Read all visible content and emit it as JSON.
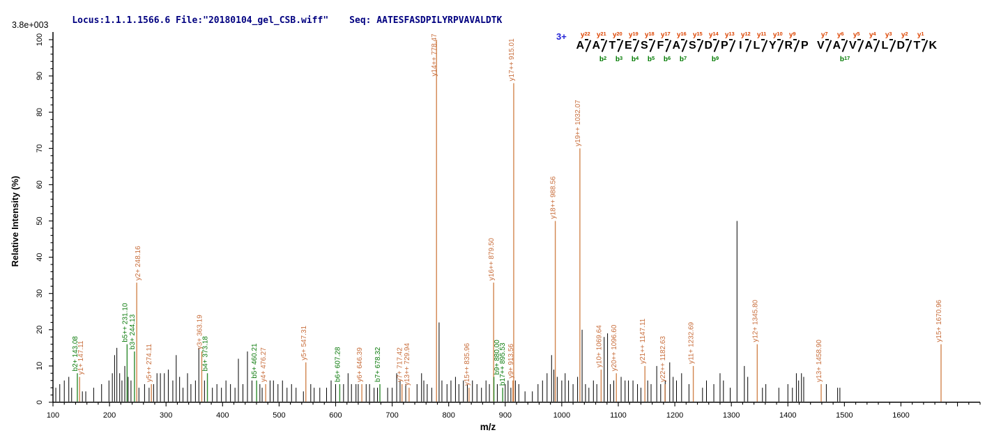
{
  "header": {
    "locus_file": "Locus:1.1.1.1566.6 File:\"20180104_gel_CSB.wiff\"",
    "seq_label": "Seq: AATESFASDPILYRPVAVALDTK"
  },
  "chart_data": {
    "type": "bar",
    "subtype": "ms2-fragmentation-spectrum",
    "title": "",
    "xlabel": "m/z",
    "ylabel": "Relative  Intensity (%)",
    "y_scale_note": "3.8e+003",
    "xlim": [
      100,
      1740
    ],
    "ylim": [
      0,
      100
    ],
    "grid": false,
    "x_tick_labels": [
      100,
      200,
      300,
      400,
      500,
      600,
      700,
      800,
      900,
      1000,
      1100,
      1200,
      1300,
      1400,
      1500,
      1600
    ],
    "x_minor_step": 20,
    "y_tick_labels": [
      0,
      10,
      20,
      30,
      40,
      50,
      60,
      70,
      80,
      90,
      100
    ],
    "y_minor_step": 2,
    "peptide": {
      "charge_label": "3+",
      "residues": "AATESFASDPILYRPVAVALDTK",
      "boundaries": [
        {
          "y": 22
        },
        {
          "y": 21,
          "b": 2
        },
        {
          "y": 20,
          "b": 3
        },
        {
          "y": 19,
          "b": 4
        },
        {
          "y": 18,
          "b": 5
        },
        {
          "y": 17,
          "b": 6
        },
        {
          "y": 16,
          "b": 7
        },
        {
          "y": 15
        },
        {
          "y": 14,
          "b": 9
        },
        {
          "y": 13
        },
        {
          "y": 12
        },
        {
          "y": 11
        },
        {
          "y": 10
        },
        {
          "y": 9
        },
        {},
        {
          "y": 7
        },
        {
          "y": 6,
          "b": 17
        },
        {
          "y": 5
        },
        {
          "y": 4
        },
        {
          "y": 3
        },
        {
          "y": 2
        },
        {
          "y": 1
        }
      ]
    },
    "labeled_peaks": [
      {
        "ion": "b2+",
        "mz": "143.08",
        "intensity": 8,
        "series": "b"
      },
      {
        "ion": "y1+",
        "mz": "147.11",
        "intensity": 7,
        "series": "y"
      },
      {
        "ion": "b5++",
        "mz": "231.10",
        "intensity": 16,
        "series": "b"
      },
      {
        "ion": "b3+",
        "mz": "244.13",
        "intensity": 14,
        "series": "b"
      },
      {
        "ion": "y2+",
        "mz": "248.16",
        "intensity": 33,
        "series": "y"
      },
      {
        "ion": "y5++",
        "mz": "274.11",
        "intensity": 5,
        "series": "y"
      },
      {
        "ion": "y3+",
        "mz": "363.19",
        "intensity": 14,
        "series": "y"
      },
      {
        "ion": "b4+",
        "mz": "373.18",
        "intensity": 8,
        "series": "b"
      },
      {
        "ion": "b5+",
        "mz": "460.21",
        "intensity": 6,
        "series": "b"
      },
      {
        "ion": "y4+",
        "mz": "476.27",
        "intensity": 5,
        "series": "y"
      },
      {
        "ion": "y5+",
        "mz": "547.31",
        "intensity": 11,
        "series": "y"
      },
      {
        "ion": "b6+",
        "mz": "607.28",
        "intensity": 5,
        "series": "b"
      },
      {
        "ion": "y6+",
        "mz": "646.39",
        "intensity": 5,
        "series": "y"
      },
      {
        "ion": "b7+",
        "mz": "678.32",
        "intensity": 5,
        "series": "b"
      },
      {
        "ion": "y7+",
        "mz": "717.42",
        "intensity": 5,
        "series": "y"
      },
      {
        "ion": "y13++",
        "mz": "729.94",
        "intensity": 4,
        "series": "y"
      },
      {
        "ion": "y14++",
        "mz": "778.47",
        "intensity": 100,
        "series": "y"
      },
      {
        "ion": "y15++",
        "mz": "835.96",
        "intensity": 4,
        "series": "y"
      },
      {
        "ion": "y16++",
        "mz": "879.50",
        "intensity": 33,
        "series": "y"
      },
      {
        "ion": "b9+",
        "mz": "880.00",
        "intensity": 7,
        "series": "b"
      },
      {
        "ion": "b17++",
        "mz": "895.53",
        "intensity": 4,
        "series": "b"
      },
      {
        "ion": "y9+",
        "mz": "913.56",
        "intensity": 6,
        "series": "y"
      },
      {
        "ion": "y17++",
        "mz": "915.01",
        "intensity": 88,
        "series": "y"
      },
      {
        "ion": "y18++",
        "mz": "988.56",
        "intensity": 50,
        "series": "y"
      },
      {
        "ion": "y19++",
        "mz": "1032.07",
        "intensity": 70,
        "series": "y"
      },
      {
        "ion": "y10+",
        "mz": "1069.64",
        "intensity": 9,
        "series": "y"
      },
      {
        "ion": "y20++",
        "mz": "1096.60",
        "intensity": 8,
        "series": "y"
      },
      {
        "ion": "y21++",
        "mz": "1147.11",
        "intensity": 10,
        "series": "y"
      },
      {
        "ion": "y22++",
        "mz": "1182.63",
        "intensity": 5,
        "series": "y"
      },
      {
        "ion": "y11+",
        "mz": "1232.69",
        "intensity": 10,
        "series": "y"
      },
      {
        "ion": "y12+",
        "mz": "1345.80",
        "intensity": 16,
        "series": "y"
      },
      {
        "ion": "y13+",
        "mz": "1458.90",
        "intensity": 5,
        "series": "y"
      },
      {
        "ion": "y15+",
        "mz": "1670.96",
        "intensity": 16,
        "series": "y"
      }
    ],
    "unlabeled_peaks": [
      [
        105,
        4
      ],
      [
        112,
        5
      ],
      [
        120,
        6
      ],
      [
        128,
        7
      ],
      [
        133,
        4
      ],
      [
        152,
        3
      ],
      [
        158,
        3
      ],
      [
        172,
        4
      ],
      [
        186,
        5
      ],
      [
        199,
        6
      ],
      [
        205,
        8
      ],
      [
        209,
        13
      ],
      [
        213,
        15
      ],
      [
        218,
        8
      ],
      [
        222,
        6
      ],
      [
        227,
        10
      ],
      [
        233,
        7
      ],
      [
        238,
        6
      ],
      [
        252,
        4
      ],
      [
        262,
        5
      ],
      [
        270,
        4
      ],
      [
        278,
        5
      ],
      [
        284,
        8
      ],
      [
        290,
        8
      ],
      [
        297,
        8
      ],
      [
        304,
        9
      ],
      [
        312,
        6
      ],
      [
        318,
        13
      ],
      [
        324,
        7
      ],
      [
        330,
        4
      ],
      [
        338,
        8
      ],
      [
        344,
        5
      ],
      [
        352,
        6
      ],
      [
        358,
        15
      ],
      [
        368,
        6
      ],
      [
        382,
        4
      ],
      [
        390,
        5
      ],
      [
        398,
        4
      ],
      [
        406,
        6
      ],
      [
        414,
        5
      ],
      [
        422,
        4
      ],
      [
        428,
        12
      ],
      [
        436,
        5
      ],
      [
        444,
        14
      ],
      [
        452,
        6
      ],
      [
        466,
        5
      ],
      [
        470,
        4
      ],
      [
        484,
        6
      ],
      [
        490,
        6
      ],
      [
        498,
        5
      ],
      [
        506,
        6
      ],
      [
        514,
        4
      ],
      [
        522,
        5
      ],
      [
        530,
        4
      ],
      [
        543,
        3
      ],
      [
        556,
        5
      ],
      [
        562,
        4
      ],
      [
        572,
        4
      ],
      [
        584,
        4
      ],
      [
        592,
        6
      ],
      [
        600,
        5
      ],
      [
        614,
        5
      ],
      [
        622,
        8
      ],
      [
        628,
        5
      ],
      [
        636,
        5
      ],
      [
        640,
        5
      ],
      [
        654,
        5
      ],
      [
        660,
        5
      ],
      [
        668,
        4
      ],
      [
        674,
        4
      ],
      [
        692,
        4
      ],
      [
        700,
        4
      ],
      [
        708,
        8
      ],
      [
        714,
        6
      ],
      [
        724,
        5
      ],
      [
        744,
        5
      ],
      [
        752,
        8
      ],
      [
        756,
        6
      ],
      [
        762,
        5
      ],
      [
        770,
        4
      ],
      [
        783,
        22
      ],
      [
        788,
        6
      ],
      [
        797,
        5
      ],
      [
        804,
        6
      ],
      [
        812,
        7
      ],
      [
        818,
        5
      ],
      [
        826,
        6
      ],
      [
        833,
        5
      ],
      [
        842,
        6
      ],
      [
        850,
        5
      ],
      [
        858,
        4
      ],
      [
        866,
        6
      ],
      [
        872,
        5
      ],
      [
        886,
        5
      ],
      [
        900,
        5
      ],
      [
        905,
        6
      ],
      [
        910,
        4
      ],
      [
        918,
        6
      ],
      [
        924,
        5
      ],
      [
        935,
        3
      ],
      [
        948,
        3
      ],
      [
        958,
        5
      ],
      [
        966,
        6
      ],
      [
        974,
        8
      ],
      [
        982,
        13
      ],
      [
        986,
        9
      ],
      [
        992,
        7
      ],
      [
        1000,
        6
      ],
      [
        1006,
        8
      ],
      [
        1012,
        6
      ],
      [
        1020,
        5
      ],
      [
        1028,
        7
      ],
      [
        1036,
        20
      ],
      [
        1042,
        5
      ],
      [
        1048,
        4
      ],
      [
        1056,
        6
      ],
      [
        1062,
        5
      ],
      [
        1075,
        18
      ],
      [
        1081,
        19
      ],
      [
        1086,
        5
      ],
      [
        1092,
        6
      ],
      [
        1105,
        7
      ],
      [
        1112,
        6
      ],
      [
        1118,
        6
      ],
      [
        1126,
        6
      ],
      [
        1134,
        5
      ],
      [
        1140,
        4
      ],
      [
        1152,
        6
      ],
      [
        1158,
        5
      ],
      [
        1168,
        10
      ],
      [
        1175,
        5
      ],
      [
        1183,
        6
      ],
      [
        1191,
        11
      ],
      [
        1197,
        7
      ],
      [
        1203,
        6
      ],
      [
        1212,
        8
      ],
      [
        1225,
        5
      ],
      [
        1249,
        4
      ],
      [
        1256,
        6
      ],
      [
        1269,
        5
      ],
      [
        1280,
        8
      ],
      [
        1286,
        6
      ],
      [
        1298,
        4
      ],
      [
        1310,
        50
      ],
      [
        1323,
        10
      ],
      [
        1329,
        7
      ],
      [
        1355,
        4
      ],
      [
        1361,
        5
      ],
      [
        1384,
        4
      ],
      [
        1400,
        5
      ],
      [
        1408,
        4
      ],
      [
        1415,
        8
      ],
      [
        1419,
        6
      ],
      [
        1424,
        8
      ],
      [
        1428,
        7
      ],
      [
        1468,
        5
      ],
      [
        1488,
        4
      ],
      [
        1492,
        4
      ]
    ],
    "colors": {
      "header_text": "#000080",
      "charge": "#2323d6",
      "y_ion_line": "#d2854e",
      "y_ion_label": "#c86e3c",
      "y_ion_tag": "#dd4400",
      "b_ion_line": "#2e8b2e",
      "b_ion_label": "#0b7a0b",
      "b_ion_tag": "#007a00",
      "peak_default": "#000000",
      "axis": "#000000"
    }
  }
}
